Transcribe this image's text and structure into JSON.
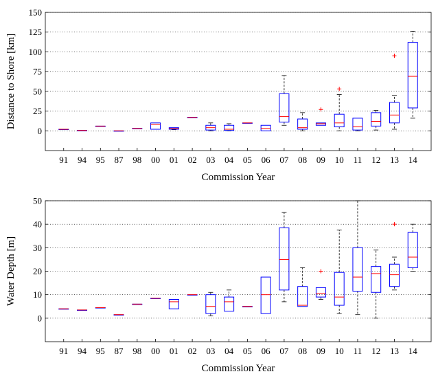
{
  "colors": {
    "box": "#0000ff",
    "median": "#ff0000",
    "outlier": "#ff0000",
    "whisker": "#000000",
    "grid": "#000000"
  },
  "chart_data": [
    {
      "type": "box",
      "xlabel": "Commission Year",
      "ylabel": "Distance to Shore [km]",
      "ylim": [
        -25,
        150
      ],
      "yticks": [
        0,
        25,
        50,
        75,
        100,
        125,
        150
      ],
      "grid": "horizontal dotted",
      "categories": [
        "91",
        "94",
        "95",
        "87",
        "98",
        "00",
        "01",
        "02",
        "03",
        "04",
        "05",
        "06",
        "07",
        "08",
        "09",
        "10",
        "11",
        "12",
        "13",
        "14"
      ],
      "boxes": [
        {
          "min": 2,
          "q1": 2,
          "median": 2,
          "q3": 2,
          "max": 2,
          "outliers": []
        },
        {
          "min": 0.5,
          "q1": 0.5,
          "median": 0.5,
          "q3": 0.5,
          "max": 0.5,
          "outliers": []
        },
        {
          "min": 6,
          "q1": 6,
          "median": 6,
          "q3": 6,
          "max": 6,
          "outliers": []
        },
        {
          "min": 0,
          "q1": 0,
          "median": 0,
          "q3": 0,
          "max": 0,
          "outliers": []
        },
        {
          "min": 3,
          "q1": 3,
          "median": 3,
          "q3": 3,
          "max": 3,
          "outliers": []
        },
        {
          "min": 2,
          "q1": 2,
          "median": 8,
          "q3": 10,
          "max": 10,
          "outliers": []
        },
        {
          "min": 1.5,
          "q1": 2,
          "median": 3,
          "q3": 4,
          "max": 4,
          "outliers": []
        },
        {
          "min": 17,
          "q1": 17,
          "median": 17,
          "q3": 17,
          "max": 17,
          "outliers": []
        },
        {
          "min": 0,
          "q1": 1,
          "median": 4,
          "q3": 7,
          "max": 10,
          "outliers": []
        },
        {
          "min": 0,
          "q1": 0.5,
          "median": 2,
          "q3": 7,
          "max": 9,
          "outliers": []
        },
        {
          "min": 10,
          "q1": 10,
          "median": 10,
          "q3": 10,
          "max": 10,
          "outliers": []
        },
        {
          "min": 0,
          "q1": 0,
          "median": 3,
          "q3": 7,
          "max": 7,
          "outliers": []
        },
        {
          "min": 7,
          "q1": 11,
          "median": 18,
          "q3": 47,
          "max": 70,
          "outliers": []
        },
        {
          "min": 0,
          "q1": 2,
          "median": 4,
          "q3": 15,
          "max": 23,
          "outliers": []
        },
        {
          "min": 7,
          "q1": 7,
          "median": 9,
          "q3": 10,
          "max": 10,
          "outliers": [
            27
          ]
        },
        {
          "min": 0,
          "q1": 5,
          "median": 10,
          "q3": 21,
          "max": 46,
          "outliers": [
            53
          ]
        },
        {
          "min": 0,
          "q1": 1,
          "median": 5,
          "q3": 16,
          "max": 16,
          "outliers": []
        },
        {
          "min": 1,
          "q1": 6,
          "median": 12,
          "q3": 23,
          "max": 26,
          "outliers": []
        },
        {
          "min": 2,
          "q1": 10,
          "median": 20,
          "q3": 36,
          "max": 45,
          "outliers": [
            95
          ]
        },
        {
          "min": 16,
          "q1": 29,
          "median": 69,
          "q3": 112,
          "max": 126,
          "outliers": []
        }
      ]
    },
    {
      "type": "box",
      "xlabel": "Commission Year",
      "ylabel": "Water Depth [m]",
      "ylim": [
        -10,
        50
      ],
      "yticks": [
        0,
        10,
        20,
        30,
        40,
        50
      ],
      "grid": "horizontal dotted",
      "categories": [
        "91",
        "94",
        "95",
        "87",
        "98",
        "00",
        "01",
        "02",
        "03",
        "04",
        "05",
        "06",
        "07",
        "08",
        "09",
        "10",
        "11",
        "12",
        "13",
        "14"
      ],
      "boxes": [
        {
          "min": 4,
          "q1": 4,
          "median": 4,
          "q3": 4,
          "max": 4,
          "outliers": []
        },
        {
          "min": 3.5,
          "q1": 3.5,
          "median": 3.5,
          "q3": 3.5,
          "max": 3.5,
          "outliers": []
        },
        {
          "min": 4.5,
          "q1": 4.5,
          "median": 4.5,
          "q3": 4.5,
          "max": 4.5,
          "outliers": []
        },
        {
          "min": 1.5,
          "q1": 1.5,
          "median": 1.5,
          "q3": 1.5,
          "max": 1.5,
          "outliers": []
        },
        {
          "min": 6,
          "q1": 6,
          "median": 6,
          "q3": 6,
          "max": 6,
          "outliers": []
        },
        {
          "min": 8.5,
          "q1": 8.5,
          "median": 8.5,
          "q3": 8.5,
          "max": 8.5,
          "outliers": []
        },
        {
          "min": 4,
          "q1": 4,
          "median": 7,
          "q3": 8,
          "max": 8,
          "outliers": []
        },
        {
          "min": 10,
          "q1": 10,
          "median": 10,
          "q3": 10,
          "max": 10,
          "outliers": []
        },
        {
          "min": 1,
          "q1": 2,
          "median": 5,
          "q3": 10,
          "max": 11,
          "outliers": []
        },
        {
          "min": 3,
          "q1": 3,
          "median": 7,
          "q3": 9,
          "max": 12,
          "outliers": []
        },
        {
          "min": 5,
          "q1": 5,
          "median": 5,
          "q3": 5,
          "max": 5,
          "outliers": []
        },
        {
          "min": 2,
          "q1": 2,
          "median": 10,
          "q3": 17.5,
          "max": 17.5,
          "outliers": []
        },
        {
          "min": 7,
          "q1": 12,
          "median": 25,
          "q3": 38.5,
          "max": 45,
          "outliers": []
        },
        {
          "min": 5,
          "q1": 5,
          "median": 5.5,
          "q3": 13.5,
          "max": 21.5,
          "outliers": []
        },
        {
          "min": 8,
          "q1": 9,
          "median": 10.5,
          "q3": 13,
          "max": 13,
          "outliers": [
            20
          ]
        },
        {
          "min": 2,
          "q1": 5.5,
          "median": 9,
          "q3": 19.5,
          "max": 37.5,
          "outliers": []
        },
        {
          "min": 1.5,
          "q1": 11.5,
          "median": 17.5,
          "q3": 30,
          "max": 50,
          "outliers": []
        },
        {
          "min": 0,
          "q1": 11,
          "median": 19,
          "q3": 22,
          "max": 29,
          "outliers": []
        },
        {
          "min": 12,
          "q1": 13.5,
          "median": 18.5,
          "q3": 23,
          "max": 26,
          "outliers": [
            40
          ]
        },
        {
          "min": 20,
          "q1": 21.5,
          "median": 26,
          "q3": 36.5,
          "max": 40,
          "outliers": []
        }
      ]
    }
  ]
}
